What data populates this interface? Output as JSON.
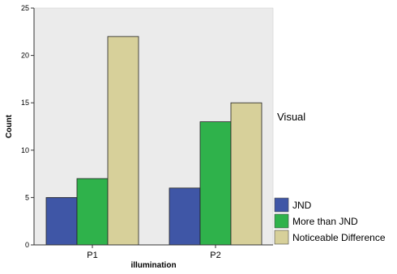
{
  "chart_data": {
    "type": "bar",
    "categories": [
      "P1",
      "P2"
    ],
    "series": [
      {
        "name": "JND",
        "values": [
          5,
          6
        ],
        "color": "#3f56a6"
      },
      {
        "name": "More than JND",
        "values": [
          7,
          13
        ],
        "color": "#2fb24b"
      },
      {
        "name": "Noticeable Difference",
        "values": [
          22,
          15
        ],
        "color": "#d7d09a"
      }
    ],
    "xlabel": "illumination",
    "ylabel": "Count",
    "ylim": [
      0,
      25
    ],
    "yticks": [
      0,
      5,
      10,
      15,
      20,
      25
    ],
    "legend_title": "Visual",
    "legend_position": "right",
    "grid": false,
    "plot_background": "#ebebeb"
  }
}
